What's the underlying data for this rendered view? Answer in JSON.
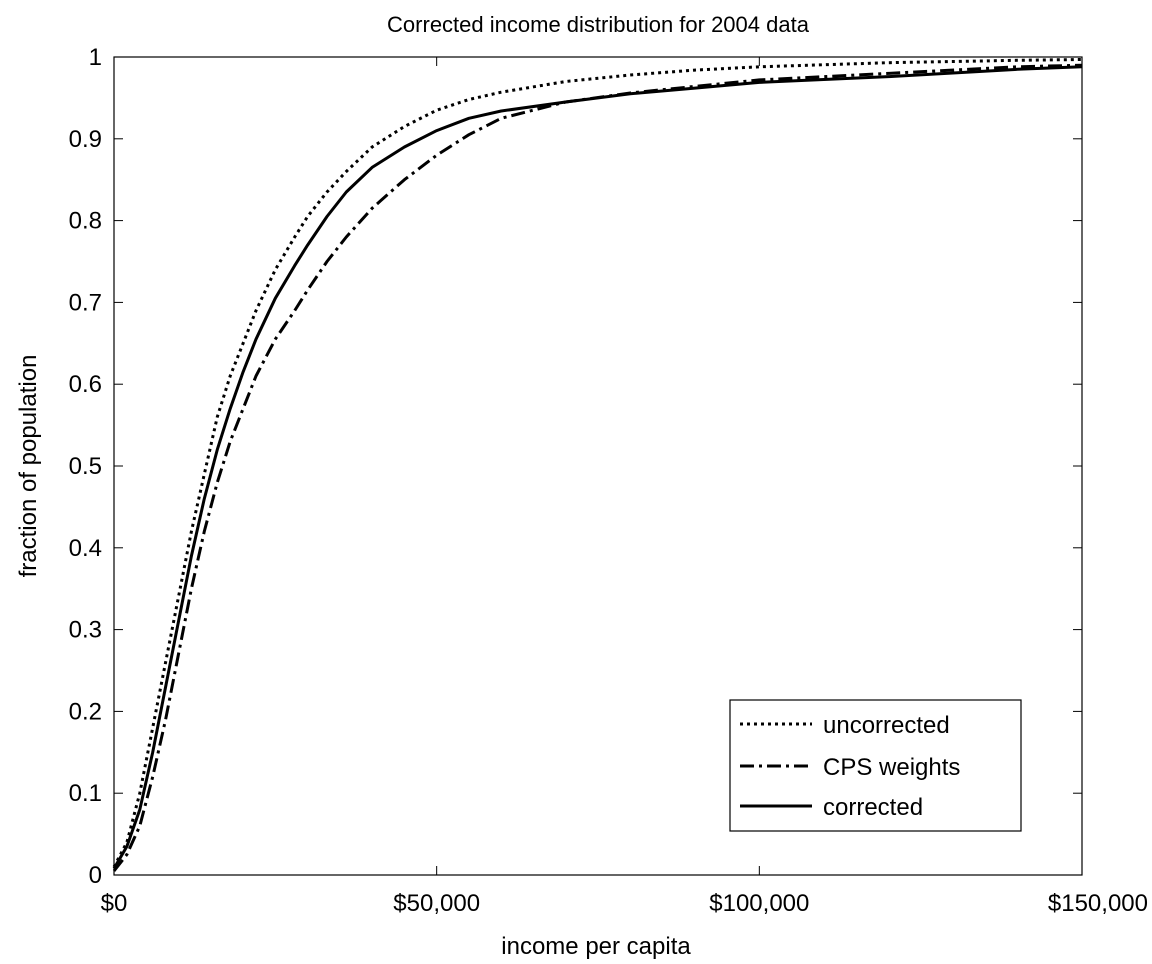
{
  "chart_data": {
    "type": "line",
    "title": "Corrected income distribution for 2004 data",
    "xlabel": "income per capita",
    "ylabel": "fraction of population",
    "xlim": [
      0,
      150000
    ],
    "ylim": [
      0,
      1
    ],
    "x_ticks": [
      0,
      50000,
      100000,
      150000
    ],
    "x_tick_labels": [
      "$0",
      "$50,000",
      "$100,000",
      "$150,000"
    ],
    "y_ticks": [
      0,
      0.1,
      0.2,
      0.3,
      0.4,
      0.5,
      0.6,
      0.7,
      0.8,
      0.9,
      1
    ],
    "y_tick_labels": [
      "0",
      "0.1",
      "0.2",
      "0.3",
      "0.4",
      "0.5",
      "0.6",
      "0.7",
      "0.8",
      "0.9",
      "1"
    ],
    "grid": false,
    "legend_position": "bottom-right",
    "line_color": "#000000",
    "series": [
      {
        "name": "uncorrected",
        "style": "dotted",
        "x": [
          0,
          2000,
          4000,
          6000,
          8000,
          10000,
          12000,
          14000,
          16000,
          18000,
          20000,
          22000,
          25000,
          28000,
          30000,
          33000,
          36000,
          40000,
          45000,
          50000,
          55000,
          60000,
          70000,
          80000,
          90000,
          100000,
          120000,
          140000,
          150000
        ],
        "y": [
          0.01,
          0.04,
          0.1,
          0.18,
          0.26,
          0.34,
          0.42,
          0.49,
          0.56,
          0.61,
          0.65,
          0.69,
          0.74,
          0.78,
          0.805,
          0.835,
          0.86,
          0.89,
          0.915,
          0.935,
          0.948,
          0.957,
          0.97,
          0.978,
          0.984,
          0.988,
          0.993,
          0.996,
          0.997
        ]
      },
      {
        "name": "CPS weights",
        "style": "dash-dot",
        "x": [
          0,
          2000,
          4000,
          6000,
          8000,
          10000,
          12000,
          14000,
          16000,
          18000,
          20000,
          22000,
          25000,
          28000,
          30000,
          33000,
          36000,
          40000,
          45000,
          50000,
          55000,
          60000,
          70000,
          80000,
          90000,
          100000,
          120000,
          140000,
          150000
        ],
        "y": [
          0.005,
          0.025,
          0.06,
          0.12,
          0.19,
          0.27,
          0.35,
          0.42,
          0.48,
          0.53,
          0.57,
          0.61,
          0.655,
          0.69,
          0.715,
          0.75,
          0.78,
          0.815,
          0.85,
          0.88,
          0.905,
          0.925,
          0.945,
          0.956,
          0.964,
          0.972,
          0.98,
          0.988,
          0.99
        ]
      },
      {
        "name": "corrected",
        "style": "solid",
        "x": [
          0,
          2000,
          4000,
          6000,
          8000,
          10000,
          12000,
          14000,
          16000,
          18000,
          20000,
          22000,
          25000,
          28000,
          30000,
          33000,
          36000,
          40000,
          45000,
          50000,
          55000,
          60000,
          70000,
          80000,
          90000,
          100000,
          120000,
          140000,
          150000
        ],
        "y": [
          0.008,
          0.035,
          0.08,
          0.15,
          0.23,
          0.31,
          0.39,
          0.46,
          0.52,
          0.57,
          0.615,
          0.655,
          0.705,
          0.745,
          0.77,
          0.805,
          0.835,
          0.865,
          0.89,
          0.91,
          0.925,
          0.934,
          0.945,
          0.955,
          0.962,
          0.969,
          0.976,
          0.985,
          0.988
        ]
      }
    ]
  }
}
